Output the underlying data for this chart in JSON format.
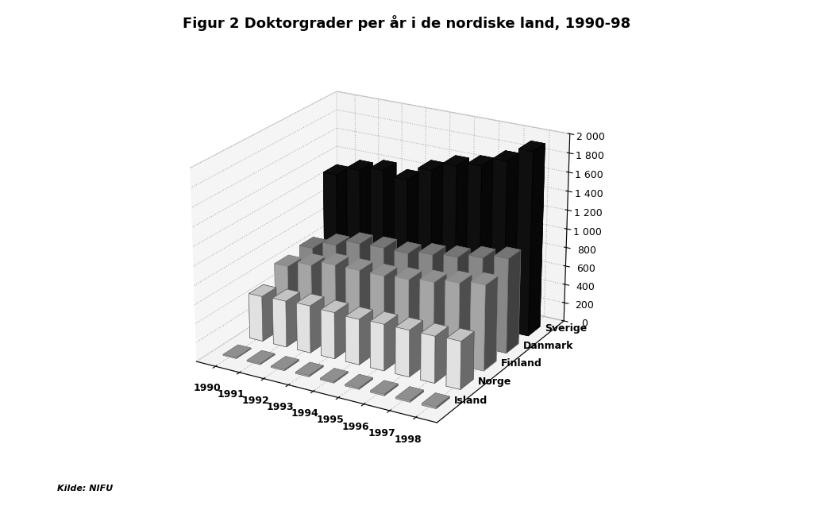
{
  "title": "Figur 2 Doktorgrader per år i de nordiske land, 1990-98",
  "source": "Kilde: NIFU",
  "years": [
    1990,
    1991,
    1992,
    1993,
    1994,
    1995,
    1996,
    1997,
    1998
  ],
  "countries": [
    "Sverige",
    "Danmark",
    "Finland",
    "Norge",
    "Island"
  ],
  "data": {
    "Sverige": [
      1300,
      1400,
      1450,
      1400,
      1550,
      1650,
      1700,
      1800,
      1950
    ],
    "Danmark": [
      660,
      750,
      820,
      830,
      830,
      870,
      900,
      950,
      1000
    ],
    "Finland": [
      630,
      700,
      760,
      760,
      760,
      780,
      810,
      860,
      900
    ],
    "Norge": [
      480,
      490,
      500,
      490,
      480,
      490,
      490,
      490,
      500
    ],
    "Island": [
      10,
      12,
      13,
      14,
      14,
      15,
      16,
      17,
      18
    ]
  },
  "bar_colors": {
    "Sverige": "#111111",
    "Danmark": "#999999",
    "Finland": "#bbbbbb",
    "Norge": "#ffffff",
    "Island": "#bbbbbb"
  },
  "bar_edge_colors": {
    "Sverige": "#000000",
    "Danmark": "#666666",
    "Finland": "#888888",
    "Norge": "#555555",
    "Island": "#777777"
  },
  "z_order": [
    "Island",
    "Norge",
    "Finland",
    "Danmark",
    "Sverige"
  ],
  "ylim": [
    0,
    2000
  ],
  "yticks": [
    0,
    200,
    400,
    600,
    800,
    1000,
    1200,
    1400,
    1600,
    1800,
    2000
  ],
  "floor_color": "#aaaaaa",
  "wall_color": "#e8e8e8",
  "elev": 22,
  "azim": -60
}
